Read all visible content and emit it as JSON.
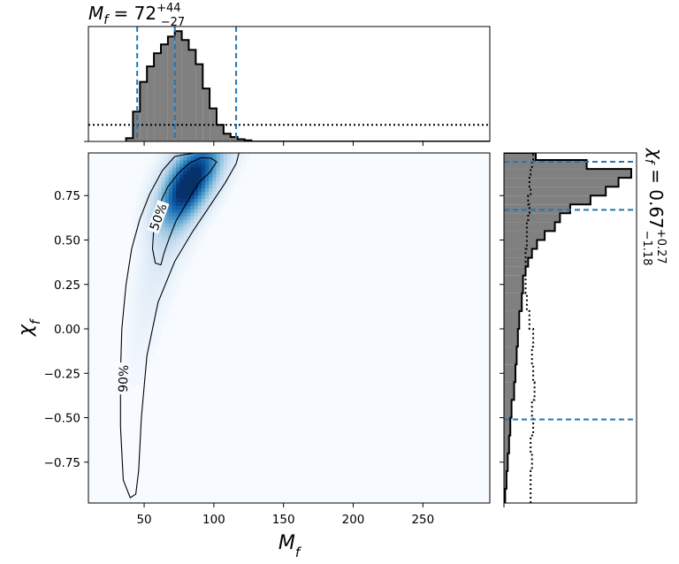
{
  "chart_data": {
    "type": "corner",
    "main": {
      "type": "heatmap",
      "xlabel": "M_f",
      "ylabel": "χ_f",
      "xlim": [
        10,
        298
      ],
      "ylim": [
        -0.98,
        0.99
      ],
      "xticks": [
        50,
        100,
        150,
        200,
        250
      ],
      "yticks": [
        -0.75,
        -0.5,
        -0.25,
        0.0,
        0.25,
        0.5,
        0.75
      ],
      "xtick_labels": [
        "50",
        "100",
        "150",
        "200",
        "250"
      ],
      "ytick_labels": [
        "−0.75",
        "−0.50",
        "−0.25",
        "0.00",
        "0.25",
        "0.50",
        "0.75"
      ],
      "colormap": "Blues",
      "density_mode": {
        "x": 82,
        "y": 0.82
      },
      "contours": [
        {
          "label": "50%",
          "points": [
            [
              62,
              0.36
            ],
            [
              58,
              0.37
            ],
            [
              56,
              0.45
            ],
            [
              57,
              0.58
            ],
            [
              61,
              0.7
            ],
            [
              67,
              0.8
            ],
            [
              75,
              0.88
            ],
            [
              83,
              0.935
            ],
            [
              91,
              0.963
            ],
            [
              98,
              0.96
            ],
            [
              102,
              0.94
            ],
            [
              97,
              0.88
            ],
            [
              90,
              0.83
            ],
            [
              85,
              0.77
            ],
            [
              79,
              0.69
            ],
            [
              73,
              0.61
            ],
            [
              68,
              0.51
            ],
            [
              64,
              0.42
            ],
            [
              62,
              0.36
            ]
          ]
        },
        {
          "label": "90%",
          "points": [
            [
              40,
              -0.95
            ],
            [
              35,
              -0.85
            ],
            [
              33,
              -0.55
            ],
            [
              33,
              -0.25
            ],
            [
              34,
              0.0
            ],
            [
              37,
              0.25
            ],
            [
              41,
              0.45
            ],
            [
              47,
              0.62
            ],
            [
              54,
              0.76
            ],
            [
              63,
              0.89
            ],
            [
              72,
              0.97
            ],
            [
              86,
              0.99
            ],
            [
              107,
              0.99
            ],
            [
              118,
              0.99
            ],
            [
              116,
              0.93
            ],
            [
              108,
              0.82
            ],
            [
              97,
              0.69
            ],
            [
              85,
              0.55
            ],
            [
              72,
              0.38
            ],
            [
              60,
              0.15
            ],
            [
              52,
              -0.15
            ],
            [
              48,
              -0.5
            ],
            [
              46,
              -0.8
            ],
            [
              44,
              -0.93
            ],
            [
              40,
              -0.95
            ]
          ]
        }
      ]
    },
    "top_histogram": {
      "title": "M_f = 72 +44 −27",
      "bin_edges": [
        37,
        42,
        47,
        52,
        57,
        62,
        67,
        72,
        77,
        82,
        87,
        92,
        97,
        102,
        107,
        112,
        117,
        122,
        127
      ],
      "counts": [
        0.03,
        0.27,
        0.54,
        0.68,
        0.8,
        0.88,
        0.95,
        1.0,
        0.92,
        0.83,
        0.7,
        0.48,
        0.3,
        0.15,
        0.07,
        0.04,
        0.02,
        0.01
      ],
      "prior_level": 0.15,
      "median": 72,
      "interval": [
        45,
        116
      ],
      "vlines": [
        45,
        72,
        116
      ]
    },
    "right_histogram": {
      "annotation": "χ_f = 0.67 +0.27 −1.18",
      "bin_edges": [
        -0.98,
        -0.9,
        -0.8,
        -0.7,
        -0.6,
        -0.5,
        -0.4,
        -0.3,
        -0.2,
        -0.1,
        0.0,
        0.1,
        0.2,
        0.3,
        0.35,
        0.4,
        0.45,
        0.5,
        0.55,
        0.6,
        0.65,
        0.7,
        0.75,
        0.8,
        0.85,
        0.9,
        0.95,
        0.99
      ],
      "counts": [
        0.01,
        0.02,
        0.03,
        0.04,
        0.05,
        0.06,
        0.08,
        0.09,
        0.1,
        0.11,
        0.12,
        0.14,
        0.15,
        0.17,
        0.19,
        0.22,
        0.26,
        0.32,
        0.4,
        0.44,
        0.52,
        0.68,
        0.8,
        0.9,
        1.0,
        0.65,
        0.25
      ],
      "prior": [
        0.21,
        0.21,
        0.22,
        0.21,
        0.23,
        0.22,
        0.24,
        0.23,
        0.22,
        0.23,
        0.2,
        0.18,
        0.17,
        0.17,
        0.17,
        0.17,
        0.18,
        0.18,
        0.18,
        0.19,
        0.2,
        0.19,
        0.21,
        0.2,
        0.21,
        0.22,
        0.23
      ],
      "median": 0.67,
      "interval": [
        -0.51,
        0.94
      ],
      "hlines": [
        -0.51,
        0.67,
        0.94
      ]
    },
    "colors": {
      "hist_fill": "#808080",
      "line": "#1f77b4",
      "outline": "#000000",
      "contour": "#000000"
    }
  }
}
